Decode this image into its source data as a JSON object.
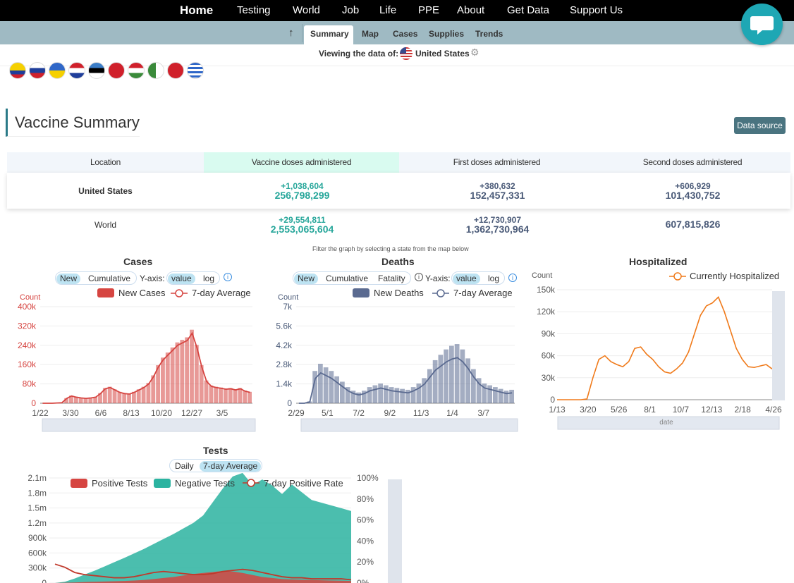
{
  "topnav": {
    "home": "Home",
    "items": [
      "Testing",
      "World",
      "Job",
      "Life",
      "PPE",
      "About",
      "Get Data",
      "Support Us"
    ]
  },
  "subnav": {
    "arrow_icon": "arrow-up-icon",
    "tabs": [
      "Summary",
      "Map",
      "Cases",
      "Supplies",
      "Trends"
    ],
    "active": "Summary"
  },
  "viewing": {
    "label": "Viewing the data of:",
    "country": "United States",
    "settings_icon": "gear-icon"
  },
  "flag_icons": [
    "colombia-flag-icon",
    "slovenia-flag-icon",
    "ukraine-flag-icon",
    "croatia-flag-icon",
    "estonia-flag-icon",
    "albania-flag-icon",
    "hungary-flag-icon",
    "algeria-flag-icon",
    "vietnam-flag-icon",
    "greece-flag-icon"
  ],
  "vaccine": {
    "title": "Vaccine Summary",
    "data_source": "Data source",
    "columns": [
      "Location",
      "Vaccine doses administered",
      "First doses administered",
      "Second doses administered"
    ],
    "rows": [
      {
        "location": "United States",
        "doses": {
          "delta": "+1,038,604",
          "total": "256,798,299"
        },
        "first": {
          "delta": "+380,632",
          "total": "152,457,331"
        },
        "second": {
          "delta": "+606,929",
          "total": "101,430,752"
        }
      },
      {
        "location": "World",
        "doses": {
          "delta": "+29,554,811",
          "total": "2,553,065,604"
        },
        "first": {
          "delta": "+12,730,907",
          "total": "1,362,730,964"
        },
        "second": {
          "delta": "",
          "total": "607,815,826"
        }
      }
    ]
  },
  "filter_note": "Filter the graph by selecting a state from the map below",
  "controls": {
    "new": "New",
    "cumulative": "Cumulative",
    "fatality": "Fatality",
    "yaxis": "Y-axis:",
    "value": "value",
    "log": "log",
    "daily": "Daily",
    "seven_day": "7-day Average",
    "info_icon": "info-icon"
  },
  "chart_data": [
    {
      "type": "bar",
      "title": "Cases",
      "ylabel": "Count",
      "legend": [
        "New Cases",
        "7-day Average"
      ],
      "x_ticks": [
        "1/22",
        "3/30",
        "6/6",
        "8/13",
        "10/20",
        "12/27",
        "3/5"
      ],
      "y_ticks": [
        "0",
        "80k",
        "160k",
        "240k",
        "320k",
        "400k"
      ],
      "ylim": [
        0,
        400000
      ],
      "series": [
        {
          "name": "7-day Average",
          "values": [
            0,
            0,
            0,
            1000,
            2000,
            20000,
            30000,
            25000,
            22000,
            20000,
            22000,
            25000,
            40000,
            60000,
            65000,
            55000,
            45000,
            40000,
            38000,
            45000,
            55000,
            65000,
            80000,
            110000,
            150000,
            180000,
            200000,
            220000,
            240000,
            250000,
            260000,
            290000,
            230000,
            150000,
            90000,
            70000,
            65000,
            62000,
            58000,
            60000,
            55000,
            60000,
            50000,
            45000
          ]
        }
      ],
      "color": "#d64541"
    },
    {
      "type": "bar",
      "title": "Deaths",
      "ylabel": "Count",
      "legend": [
        "New Deaths",
        "7-day Average"
      ],
      "x_ticks": [
        "2/29",
        "5/1",
        "7/2",
        "9/2",
        "11/3",
        "1/4",
        "3/7"
      ],
      "y_ticks": [
        "0",
        "1.4k",
        "2.8k",
        "4.2k",
        "5.6k",
        "7k"
      ],
      "ylim": [
        0,
        7000
      ],
      "series": [
        {
          "name": "7-day Average",
          "values": [
            0,
            0,
            100,
            1800,
            2200,
            2000,
            1800,
            1500,
            1200,
            900,
            700,
            600,
            700,
            900,
            1000,
            1100,
            1000,
            900,
            850,
            800,
            750,
            900,
            1100,
            1400,
            1900,
            2400,
            2700,
            3000,
            3200,
            3300,
            3000,
            2500,
            1900,
            1400,
            1100,
            1000,
            900,
            800,
            700,
            750
          ]
        }
      ],
      "color": "#5a6a90"
    },
    {
      "type": "line",
      "title": "Hospitalized",
      "ylabel": "Count",
      "xlabel": "date",
      "legend": [
        "Currently Hospitalized"
      ],
      "x_ticks": [
        "1/13",
        "3/20",
        "5/26",
        "8/1",
        "10/7",
        "12/13",
        "2/18",
        "4/26"
      ],
      "y_ticks": [
        "0",
        "30k",
        "60k",
        "90k",
        "120k",
        "150k"
      ],
      "ylim": [
        0,
        150000
      ],
      "series": [
        {
          "name": "Currently Hospitalized",
          "values": [
            0,
            0,
            0,
            0,
            0,
            1000,
            30000,
            55000,
            60000,
            52000,
            48000,
            45000,
            52000,
            70000,
            72000,
            62000,
            55000,
            45000,
            38000,
            36000,
            42000,
            50000,
            65000,
            90000,
            115000,
            128000,
            132000,
            140000,
            120000,
            95000,
            70000,
            55000,
            45000,
            44000,
            46000,
            48000,
            42000
          ]
        }
      ],
      "color": "#f07a1a"
    },
    {
      "type": "area",
      "title": "Tests",
      "legend": [
        "Positive Tests",
        "Negative Tests",
        "7-day Positive Rate"
      ],
      "y_ticks": [
        "0",
        "300k",
        "600k",
        "900k",
        "1.2m",
        "1.5m",
        "1.8m",
        "2.1m"
      ],
      "y2_ticks": [
        "0%",
        "20%",
        "40%",
        "60%",
        "80%",
        "100%"
      ],
      "ylim": [
        0,
        2100000
      ],
      "series": [
        {
          "name": "Negative Tests",
          "values": [
            0,
            20000,
            80000,
            150000,
            220000,
            300000,
            380000,
            460000,
            540000,
            620000,
            700000,
            780000,
            860000,
            940000,
            1020000,
            1150000,
            1400000,
            1650000,
            1900000,
            2000000,
            1800000,
            1950000,
            1850000,
            1700000,
            1900000,
            1750000,
            1600000,
            1550000,
            1500000,
            1450000,
            1400000
          ]
        },
        {
          "name": "Positive Tests",
          "values": [
            0,
            5000,
            10000,
            20000,
            25000,
            30000,
            35000,
            40000,
            50000,
            60000,
            80000,
            100000,
            120000,
            150000,
            180000,
            200000,
            220000,
            240000,
            230000,
            200000,
            160000,
            120000,
            100000,
            80000,
            70000,
            65000,
            60000,
            55000,
            50000,
            45000,
            40000
          ]
        },
        {
          "name": "7-day Positive Rate",
          "values": [
            18,
            15,
            10,
            8,
            7,
            6,
            5,
            5,
            6,
            8,
            10,
            11,
            10,
            9,
            8,
            8,
            9,
            11,
            12,
            13,
            12,
            10,
            8,
            6,
            5,
            5,
            4,
            4,
            4,
            4,
            3
          ]
        }
      ],
      "color": "#2bb3a0"
    }
  ]
}
